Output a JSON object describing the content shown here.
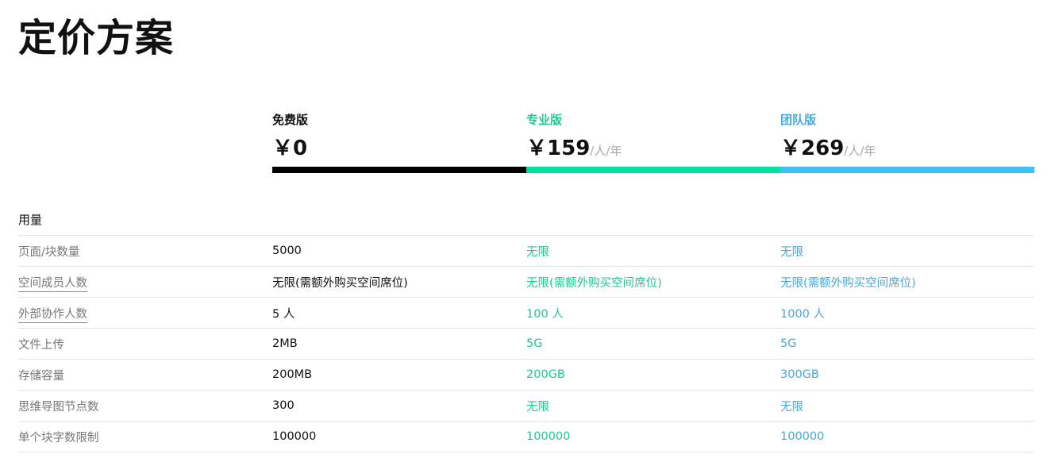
{
  "title": "定价方案",
  "colors": {
    "free": "#000000",
    "pro": "#00e09e",
    "team": "#3dbff7",
    "pro_text": "#1ecb8f",
    "team_text": "#4aa8d8"
  },
  "plans": [
    {
      "name": "免费版",
      "currency": "￥",
      "price": "0",
      "unit": ""
    },
    {
      "name": "专业版",
      "currency": "￥",
      "price": "159",
      "unit": "/人/年"
    },
    {
      "name": "团队版",
      "currency": "￥",
      "price": "269",
      "unit": "/人/年"
    }
  ],
  "section": "用量",
  "rows": [
    {
      "label": "页面/块数量",
      "underline": false,
      "values": [
        "5000",
        "无限",
        "无限"
      ]
    },
    {
      "label": "空间成员人数",
      "underline": true,
      "values": [
        "无限(需额外购买空间席位)",
        "无限(需额外购买空间席位)",
        "无限(需额外购买空间席位)"
      ]
    },
    {
      "label": "外部协作人数",
      "underline": true,
      "values": [
        "5 人",
        "100 人",
        "1000 人"
      ]
    },
    {
      "label": "文件上传",
      "underline": false,
      "values": [
        "2MB",
        "5G",
        "5G"
      ]
    },
    {
      "label": "存储容量",
      "underline": false,
      "values": [
        "200MB",
        "200GB",
        "300GB"
      ]
    },
    {
      "label": "思维导图节点数",
      "underline": false,
      "values": [
        "300",
        "无限",
        "无限"
      ]
    },
    {
      "label": "单个块字数限制",
      "underline": false,
      "values": [
        "100000",
        "100000",
        "100000"
      ]
    }
  ]
}
